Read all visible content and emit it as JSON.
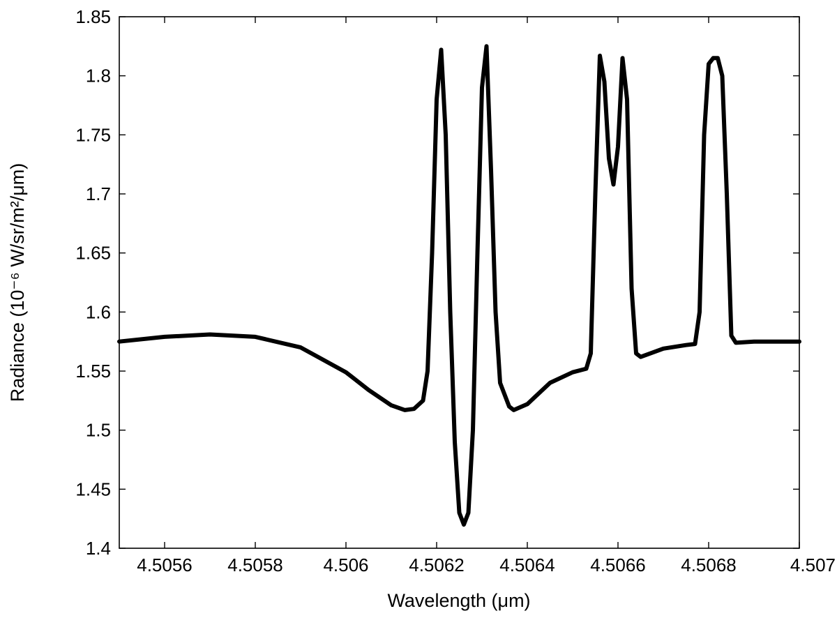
{
  "chart_data": {
    "type": "line",
    "title": "",
    "xlabel": "Wavelength (μm)",
    "ylabel": "Radiance (10⁻⁶ W/sr/m²/μm)",
    "xlim": [
      4.5055,
      4.507
    ],
    "ylim": [
      1.4,
      1.85
    ],
    "grid": false,
    "legend": "none",
    "xticks": [
      {
        "value": 4.5056,
        "label": "4.5056"
      },
      {
        "value": 4.5058,
        "label": "4.5058"
      },
      {
        "value": 4.506,
        "label": "4.506"
      },
      {
        "value": 4.5062,
        "label": "4.5062"
      },
      {
        "value": 4.5064,
        "label": "4.5064"
      },
      {
        "value": 4.5066,
        "label": "4.5066"
      },
      {
        "value": 4.5068,
        "label": "4.5068"
      },
      {
        "value": 4.507,
        "label": "4.507"
      }
    ],
    "yticks": [
      {
        "value": 1.4,
        "label": "1.4"
      },
      {
        "value": 1.45,
        "label": "1.45"
      },
      {
        "value": 1.5,
        "label": "1.5"
      },
      {
        "value": 1.55,
        "label": "1.55"
      },
      {
        "value": 1.6,
        "label": "1.6"
      },
      {
        "value": 1.65,
        "label": "1.65"
      },
      {
        "value": 1.7,
        "label": "1.7"
      },
      {
        "value": 1.75,
        "label": "1.75"
      },
      {
        "value": 1.8,
        "label": "1.8"
      },
      {
        "value": 1.85,
        "label": "1.85"
      }
    ],
    "series": [
      {
        "color": "#000000",
        "points": [
          [
            4.5055,
            1.575
          ],
          [
            4.5056,
            1.579
          ],
          [
            4.5057,
            1.581
          ],
          [
            4.5058,
            1.579
          ],
          [
            4.5059,
            1.57
          ],
          [
            4.506,
            1.549
          ],
          [
            4.50605,
            1.534
          ],
          [
            4.5061,
            1.521
          ],
          [
            4.50613,
            1.517
          ],
          [
            4.50615,
            1.518
          ],
          [
            4.50617,
            1.525
          ],
          [
            4.50618,
            1.55
          ],
          [
            4.50619,
            1.65
          ],
          [
            4.5062,
            1.78
          ],
          [
            4.50621,
            1.822
          ],
          [
            4.50622,
            1.75
          ],
          [
            4.50623,
            1.6
          ],
          [
            4.50624,
            1.49
          ],
          [
            4.50625,
            1.43
          ],
          [
            4.50626,
            1.42
          ],
          [
            4.50627,
            1.43
          ],
          [
            4.50628,
            1.5
          ],
          [
            4.50629,
            1.65
          ],
          [
            4.5063,
            1.79
          ],
          [
            4.50631,
            1.825
          ],
          [
            4.50632,
            1.72
          ],
          [
            4.50633,
            1.6
          ],
          [
            4.50634,
            1.54
          ],
          [
            4.50636,
            1.52
          ],
          [
            4.50637,
            1.517
          ],
          [
            4.5064,
            1.522
          ],
          [
            4.50645,
            1.54
          ],
          [
            4.5065,
            1.549
          ],
          [
            4.50653,
            1.552
          ],
          [
            4.50654,
            1.565
          ],
          [
            4.50655,
            1.7
          ],
          [
            4.50656,
            1.817
          ],
          [
            4.50657,
            1.795
          ],
          [
            4.50658,
            1.73
          ],
          [
            4.50659,
            1.708
          ],
          [
            4.5066,
            1.74
          ],
          [
            4.50661,
            1.815
          ],
          [
            4.50662,
            1.78
          ],
          [
            4.50663,
            1.62
          ],
          [
            4.50664,
            1.565
          ],
          [
            4.50665,
            1.562
          ],
          [
            4.5067,
            1.569
          ],
          [
            4.50675,
            1.572
          ],
          [
            4.50677,
            1.573
          ],
          [
            4.50678,
            1.6
          ],
          [
            4.50679,
            1.75
          ],
          [
            4.5068,
            1.81
          ],
          [
            4.50681,
            1.815
          ],
          [
            4.50682,
            1.815
          ],
          [
            4.50683,
            1.8
          ],
          [
            4.50684,
            1.7
          ],
          [
            4.50685,
            1.58
          ],
          [
            4.50686,
            1.574
          ],
          [
            4.5069,
            1.575
          ],
          [
            4.507,
            1.575
          ]
        ]
      }
    ]
  }
}
